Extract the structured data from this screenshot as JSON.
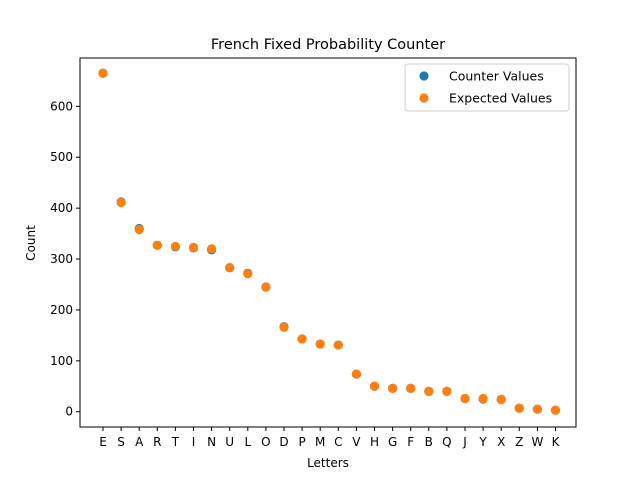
{
  "chart_data": {
    "type": "scatter",
    "title": "French Fixed Probability Counter",
    "xlabel": "Letters",
    "ylabel": "Count",
    "categories": [
      "E",
      "S",
      "A",
      "R",
      "T",
      "I",
      "N",
      "U",
      "L",
      "O",
      "D",
      "P",
      "M",
      "C",
      "V",
      "H",
      "G",
      "F",
      "B",
      "Q",
      "J",
      "Y",
      "X",
      "Z",
      "W",
      "K"
    ],
    "ylim": [
      -30,
      695
    ],
    "yticks": [
      0,
      100,
      200,
      300,
      400,
      500,
      600
    ],
    "grid": false,
    "legend_position": "top-right",
    "series": [
      {
        "name": "Counter Values",
        "color": "#1f77b4",
        "values": [
          665,
          412,
          360,
          327,
          324,
          322,
          318,
          283,
          272,
          245,
          167,
          143,
          133,
          131,
          74,
          50,
          46,
          46,
          40,
          40,
          26,
          25,
          24,
          7,
          5,
          3
        ]
      },
      {
        "name": "Expected Values",
        "color": "#ff7f0e",
        "values": [
          665,
          411,
          358,
          327,
          325,
          323,
          320,
          283,
          271,
          245,
          166,
          143,
          133,
          131,
          74,
          50,
          46,
          46,
          40,
          40,
          26,
          26,
          24,
          7,
          5,
          3
        ]
      }
    ]
  }
}
